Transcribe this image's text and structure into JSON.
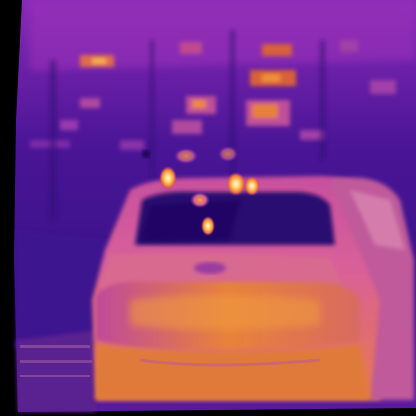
{
  "image": {
    "kind": "thermal-camera-frame",
    "palette": "ironbow",
    "subject": "car-rear-at-night",
    "colors": {
      "background_cold": "#1a0a5e",
      "mid_purple": "#6a1fa8",
      "warm_magenta": "#b52fb0",
      "hot_orange": "#e0702a",
      "hotter_orange": "#f09a3a",
      "hottest_yellow": "#fff4b0",
      "border_black": "#000000"
    }
  }
}
